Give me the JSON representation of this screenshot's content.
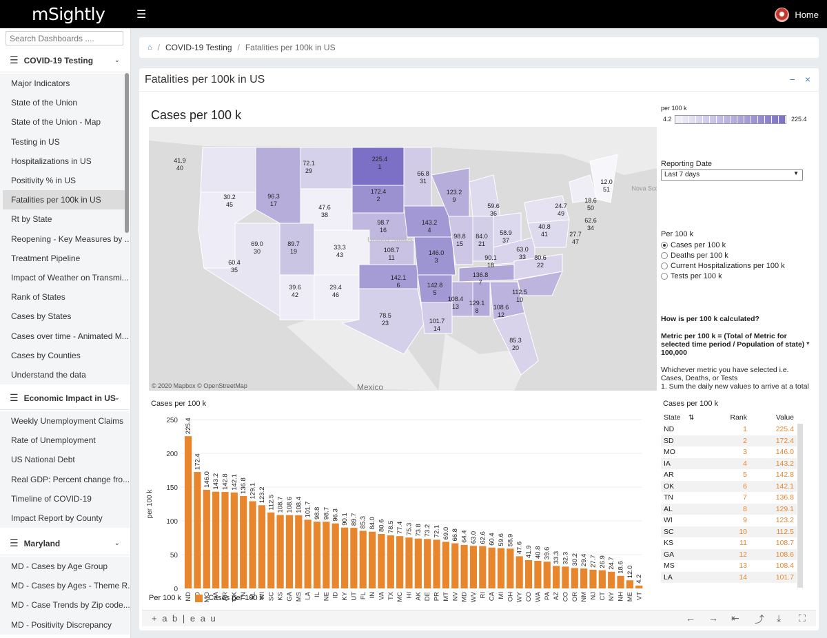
{
  "app": {
    "logo": "mSightly",
    "home": "Home"
  },
  "sidebar": {
    "search_placeholder": "Search Dashboards ....",
    "sections": [
      {
        "title": "COVID-19 Testing",
        "items": [
          "Major Indicators",
          "State of the Union",
          "State of the Union - Map",
          "Testing in US",
          "Hospitalizations in US",
          "Positivity % in US",
          "Fatalities per 100k in US",
          "Rt by State",
          "Reopening - Key Measures by ...",
          "Treatment Pipeline",
          "Impact of Weather on Transmi...",
          "Rank of States",
          "Cases by States",
          "Cases over time - Animated M...",
          "Cases by Counties",
          "Understand the data"
        ]
      },
      {
        "title": "Economic Impact in US",
        "items": [
          "Weekly Unemployment Claims",
          "Rate of Unemployment",
          "US National Debt",
          "Real GDP: Percent change fro...",
          "Timeline of COVID-19",
          "Impact Report by County"
        ]
      },
      {
        "title": "Maryland",
        "items": [
          "MD - Cases by Age Group",
          "MD - Cases by Ages - Theme R...",
          "MD - Case Trends by Zip code...",
          "MD - Positivity Discrepancy"
        ]
      }
    ]
  },
  "breadcrumb": {
    "home_icon": "home-icon",
    "section": "COVID-19 Testing",
    "current": "Fatalities per 100k in US"
  },
  "panel": {
    "title": "Fatalities per 100k in US",
    "minimize": "−",
    "close": "×"
  },
  "map": {
    "title": "Cases per 100 k",
    "attribution": "© 2020 Mapbox  © OpenStreetMap",
    "country_label": "Mexico",
    "ghost_labels": [
      "United States",
      "Nova Sco"
    ],
    "state_labels": [
      {
        "value": "41.9",
        "rank": "40"
      },
      {
        "value": "72.1",
        "rank": "29"
      },
      {
        "value": "225.4",
        "rank": "1"
      },
      {
        "value": "66.8",
        "rank": "31"
      },
      {
        "value": "12.0",
        "rank": "51"
      },
      {
        "value": "30.2",
        "rank": "45"
      },
      {
        "value": "172.4",
        "rank": "2"
      },
      {
        "value": "123.2",
        "rank": "9"
      },
      {
        "value": "18.6",
        "rank": "50"
      },
      {
        "value": "96.3",
        "rank": "17"
      },
      {
        "value": "47.6",
        "rank": "38"
      },
      {
        "value": "59.6",
        "rank": "36"
      },
      {
        "value": "24.7",
        "rank": "49"
      },
      {
        "value": "62.6",
        "rank": "34"
      },
      {
        "value": "143.2",
        "rank": "4"
      },
      {
        "value": "98.7",
        "rank": "16"
      },
      {
        "value": "40.8",
        "rank": "41"
      },
      {
        "value": "27.7",
        "rank": "47"
      },
      {
        "value": "69.0",
        "rank": "30"
      },
      {
        "value": "89.7",
        "rank": "19"
      },
      {
        "value": "33.3",
        "rank": "43"
      },
      {
        "value": "98.8",
        "rank": "15"
      },
      {
        "value": "84.0",
        "rank": "21"
      },
      {
        "value": "58.9",
        "rank": "37"
      },
      {
        "value": "108.7",
        "rank": "11"
      },
      {
        "value": "146.0",
        "rank": "3"
      },
      {
        "value": "63.0",
        "rank": "33"
      },
      {
        "value": "80.6",
        "rank": "22"
      },
      {
        "value": "60.4",
        "rank": "35"
      },
      {
        "value": "90.1",
        "rank": "18"
      },
      {
        "value": "136.8",
        "rank": "7"
      },
      {
        "value": "142.1",
        "rank": "6"
      },
      {
        "value": "39.6",
        "rank": "42"
      },
      {
        "value": "29.4",
        "rank": "46"
      },
      {
        "value": "142.8",
        "rank": "5"
      },
      {
        "value": "112.5",
        "rank": "10"
      },
      {
        "value": "108.4",
        "rank": "13"
      },
      {
        "value": "129.1",
        "rank": "8"
      },
      {
        "value": "108.6",
        "rank": "12"
      },
      {
        "value": "78.5",
        "rank": "23"
      },
      {
        "value": "101.7",
        "rank": "14"
      },
      {
        "value": "85.3",
        "rank": "20"
      }
    ]
  },
  "legend": {
    "title": "per 100 k",
    "min": "4.2",
    "max": "225.4"
  },
  "controls": {
    "reporting_date_label": "Reporting Date",
    "reporting_date_value": "Last 7 days",
    "per100k_label": "Per 100 k",
    "options": [
      "Cases per 100 k",
      "Deaths per 100 k",
      "Current Hospitalizations per 100 k",
      "Tests per 100 k"
    ],
    "selected_option": 0
  },
  "explain": {
    "heading": "How is per 100 k calculated?",
    "formula": "Metric per 100 k = (Total of Metric for selected time period / Population of state) * 100,000",
    "body1": "Whichever metric you have selected i.e. Cases, Deaths, or Tests",
    "body2": "1. Sum the daily new values to arrive at a total"
  },
  "chart_data": {
    "type": "bar",
    "title": "Cases per 100 k",
    "xlabel": "",
    "ylabel": "per 100 k",
    "ylim": [
      0,
      250
    ],
    "yticks": [
      "0",
      "50",
      "100",
      "150",
      "200",
      "250"
    ],
    "categories": [
      "ND",
      "SD",
      "MO",
      "IA",
      "AR",
      "OK",
      "TN",
      "AL",
      "WI",
      "SC",
      "KS",
      "GA",
      "MS",
      "LA",
      "IL",
      "NE",
      "ID",
      "KY",
      "UT",
      "FL",
      "IN",
      "VA",
      "TX",
      "MC",
      "HI",
      "AK",
      "DE",
      "PR",
      "MT",
      "NV",
      "MD",
      "WV",
      "RI",
      "CA",
      "MI",
      "OH",
      "WY",
      "CO",
      "WA",
      "PA",
      "AZ",
      "CO",
      "OR",
      "NM",
      "NJ",
      "CT",
      "NY",
      "NH",
      "ME",
      "VT"
    ],
    "values": [
      225.4,
      172.4,
      146.0,
      143.2,
      142.8,
      142.1,
      136.8,
      129.1,
      123.2,
      112.5,
      108.7,
      108.6,
      108.4,
      101.7,
      98.8,
      98.7,
      96.3,
      90.1,
      89.7,
      85.3,
      84.0,
      80.6,
      78.5,
      77.4,
      75.3,
      73.8,
      73.2,
      72.1,
      69.0,
      66.8,
      64.4,
      63.0,
      62.6,
      60.4,
      59.6,
      58.9,
      47.6,
      41.9,
      40.8,
      39.6,
      33.3,
      32.3,
      30.2,
      29.4,
      27.7,
      26.9,
      24.7,
      18.6,
      12.0,
      4.2
    ],
    "labels": [
      "225.4",
      "172.4",
      "146.0",
      "143.2",
      "142.8",
      "142.1",
      "136.8",
      "129.1",
      "123.2",
      "112.5",
      "108.7",
      "108.6",
      "108.4",
      "101.7",
      "98.8",
      "98.7",
      "96.3",
      "90.1",
      "89.7",
      "85.3",
      "84.0",
      "80.6",
      "78.5",
      "77.4",
      "75.3",
      "73.8",
      "73.2",
      "72.1",
      "69.0",
      "66.8",
      "64.4",
      "63.0",
      "62.6",
      "60.4",
      "59.6",
      "58.9",
      "47.6",
      "41.9",
      "40.8",
      "39.6",
      "33.3",
      "32.3",
      "30.2",
      "29.4",
      "27.7",
      "26.9",
      "24.7",
      "18.6",
      "12.0",
      "4.2"
    ],
    "color": "#e8862e",
    "legend_label": "Per 100 k",
    "series_label": "Cases per 100 k"
  },
  "table": {
    "title": "Cases per 100 k",
    "columns": [
      "State",
      "Rank",
      "Value"
    ],
    "rows": [
      [
        "ND",
        "1",
        "225.4"
      ],
      [
        "SD",
        "2",
        "172.4"
      ],
      [
        "MO",
        "3",
        "146.0"
      ],
      [
        "IA",
        "4",
        "143.2"
      ],
      [
        "AR",
        "5",
        "142.8"
      ],
      [
        "OK",
        "6",
        "142.1"
      ],
      [
        "TN",
        "7",
        "136.8"
      ],
      [
        "AL",
        "8",
        "129.1"
      ],
      [
        "WI",
        "9",
        "123.2"
      ],
      [
        "SC",
        "10",
        "112.5"
      ],
      [
        "KS",
        "11",
        "108.7"
      ],
      [
        "GA",
        "12",
        "108.6"
      ],
      [
        "MS",
        "13",
        "108.4"
      ],
      [
        "LA",
        "14",
        "101.7"
      ]
    ]
  },
  "toolbar": {
    "logo": "+ a b | e a u",
    "icons": [
      "undo-icon",
      "redo-icon",
      "revert-icon",
      "share-icon",
      "download-icon",
      "fullscreen-icon"
    ]
  },
  "colors": {
    "bar": "#e8862e",
    "map_low": "#f4f2f9",
    "map_high": "#7a6fc4",
    "link": "#3e7fc1"
  }
}
